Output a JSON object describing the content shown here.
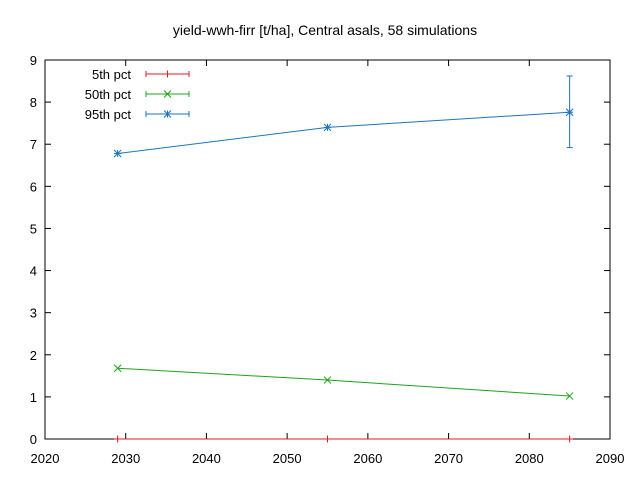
{
  "chart_data": {
    "type": "line",
    "title": "yield-wwh-firr [t/ha], Central asals, 58 simulations",
    "xlabel": "",
    "ylabel": "",
    "xlim": [
      2020,
      2090
    ],
    "ylim": [
      0,
      9
    ],
    "xticks": [
      2020,
      2030,
      2040,
      2050,
      2060,
      2070,
      2080,
      2090
    ],
    "yticks": [
      0,
      1,
      2,
      3,
      4,
      5,
      6,
      7,
      8,
      9
    ],
    "x": [
      2029,
      2055,
      2085
    ],
    "grid": false,
    "legend": "top-left",
    "series": [
      {
        "name": "5th pct",
        "color": "#e41a1c",
        "marker": "plus",
        "values": [
          0,
          0,
          0
        ],
        "err_low": [
          0,
          0,
          0
        ],
        "err_high": [
          0,
          0,
          0
        ]
      },
      {
        "name": "50th pct",
        "color": "#1ca41c",
        "marker": "cross",
        "values": [
          1.68,
          1.4,
          1.02
        ],
        "err_low": [
          1.68,
          1.4,
          1.02
        ],
        "err_high": [
          1.68,
          1.4,
          1.02
        ]
      },
      {
        "name": "95th pct",
        "color": "#1a73c4",
        "marker": "star",
        "values": [
          6.78,
          7.4,
          7.76
        ],
        "err_low": [
          6.78,
          7.4,
          6.92
        ],
        "err_high": [
          6.78,
          7.4,
          8.62
        ]
      }
    ]
  }
}
